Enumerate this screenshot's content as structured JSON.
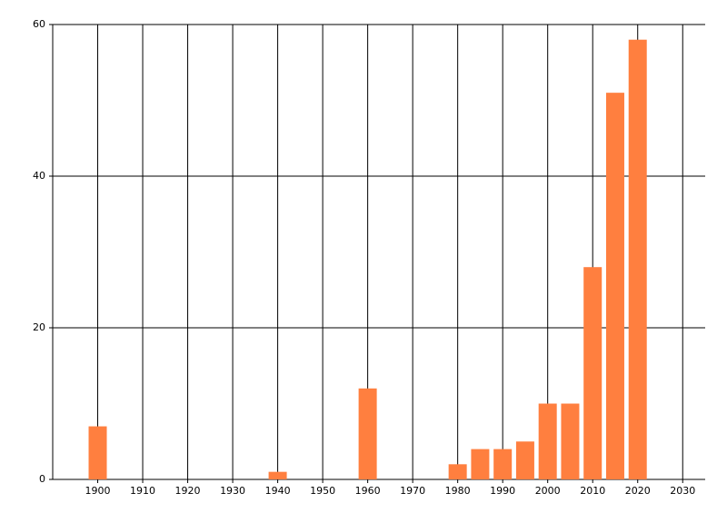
{
  "chart_data": {
    "type": "bar",
    "x": [
      1900,
      1940,
      1960,
      1980,
      1985,
      1990,
      1995,
      2000,
      2005,
      2010,
      2015,
      2020
    ],
    "values": [
      7,
      1,
      12,
      2,
      4,
      4,
      5,
      10,
      10,
      28,
      51,
      58
    ],
    "color": "#ff7f3f",
    "xlim": [
      1890,
      2035
    ],
    "xticks": [
      1900,
      1910,
      1920,
      1930,
      1940,
      1950,
      1960,
      1970,
      1980,
      1990,
      2000,
      2010,
      2020,
      2030
    ],
    "ylim": [
      0,
      60
    ],
    "yticks": [
      0,
      20,
      40,
      60
    ],
    "grid": true
  }
}
